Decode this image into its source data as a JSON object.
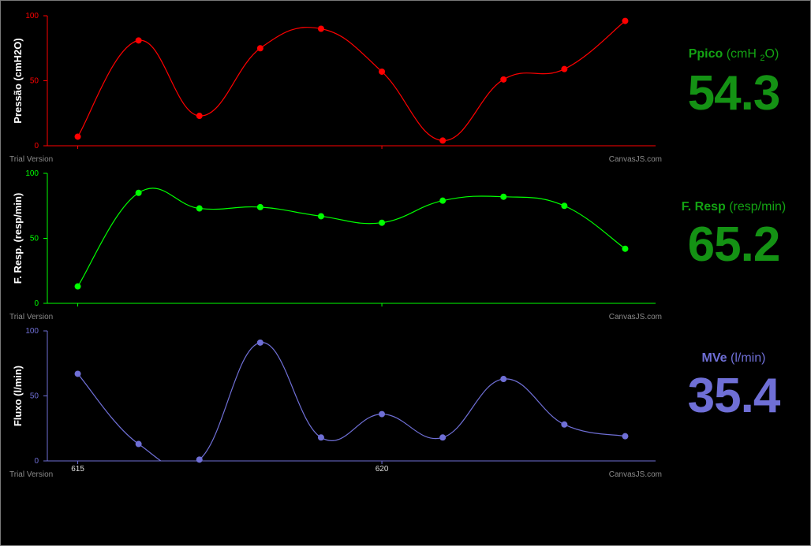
{
  "watermark": {
    "left": "Trial Version",
    "right": "CanvasJS.com"
  },
  "chart_data": [
    {
      "type": "line",
      "ylabel": "Pressão (cmH2O)",
      "ylim": [
        0,
        100
      ],
      "yticks": [
        0,
        50,
        100
      ],
      "xlim": [
        614.5,
        624.5
      ],
      "xticks": [
        615,
        620
      ],
      "show_xtick_labels": false,
      "color": "#ff0000",
      "series": [
        {
          "x": [
            615,
            616,
            617,
            618,
            619,
            620,
            621,
            622,
            623,
            624
          ],
          "values": [
            7,
            81,
            23,
            75,
            90,
            57,
            4,
            51,
            59,
            96
          ]
        }
      ]
    },
    {
      "type": "line",
      "ylabel": "F. Resp. (resp/min)",
      "ylim": [
        0,
        100
      ],
      "yticks": [
        0,
        50,
        100
      ],
      "xlim": [
        614.5,
        624.5
      ],
      "xticks": [
        615,
        620
      ],
      "show_xtick_labels": false,
      "color": "#00ff00",
      "series": [
        {
          "x": [
            615,
            616,
            617,
            618,
            619,
            620,
            621,
            622,
            623,
            624
          ],
          "values": [
            13,
            85,
            73,
            74,
            67,
            62,
            79,
            82,
            75,
            42
          ]
        }
      ]
    },
    {
      "type": "line",
      "ylabel": "Fluxo (l/min)",
      "ylim": [
        0,
        100
      ],
      "yticks": [
        0,
        50,
        100
      ],
      "xlim": [
        614.5,
        624.5
      ],
      "xticks": [
        615,
        620
      ],
      "show_xtick_labels": true,
      "color": "#6f6fd6",
      "series": [
        {
          "x": [
            615,
            616,
            617,
            618,
            619,
            620,
            621,
            622,
            623,
            624
          ],
          "values": [
            67,
            13,
            1,
            91,
            18,
            36,
            18,
            63,
            28,
            19
          ]
        }
      ]
    }
  ],
  "readouts": [
    {
      "name": "Ppico",
      "unit_pre": "(cmH ",
      "unit_sub": "2",
      "unit_post": "O)",
      "value": "54.3",
      "label_color": "#13a313",
      "value_color": "#149214"
    },
    {
      "name": "F. Resp",
      "unit_pre": "(resp/min)",
      "unit_sub": "",
      "unit_post": "",
      "value": "65.2",
      "label_color": "#13a313",
      "value_color": "#149214"
    },
    {
      "name": "MVe",
      "unit_pre": "(l/min)",
      "unit_sub": "",
      "unit_post": "",
      "value": "35.4",
      "label_color": "#6f6fd6",
      "value_color": "#6f6fd6"
    }
  ]
}
